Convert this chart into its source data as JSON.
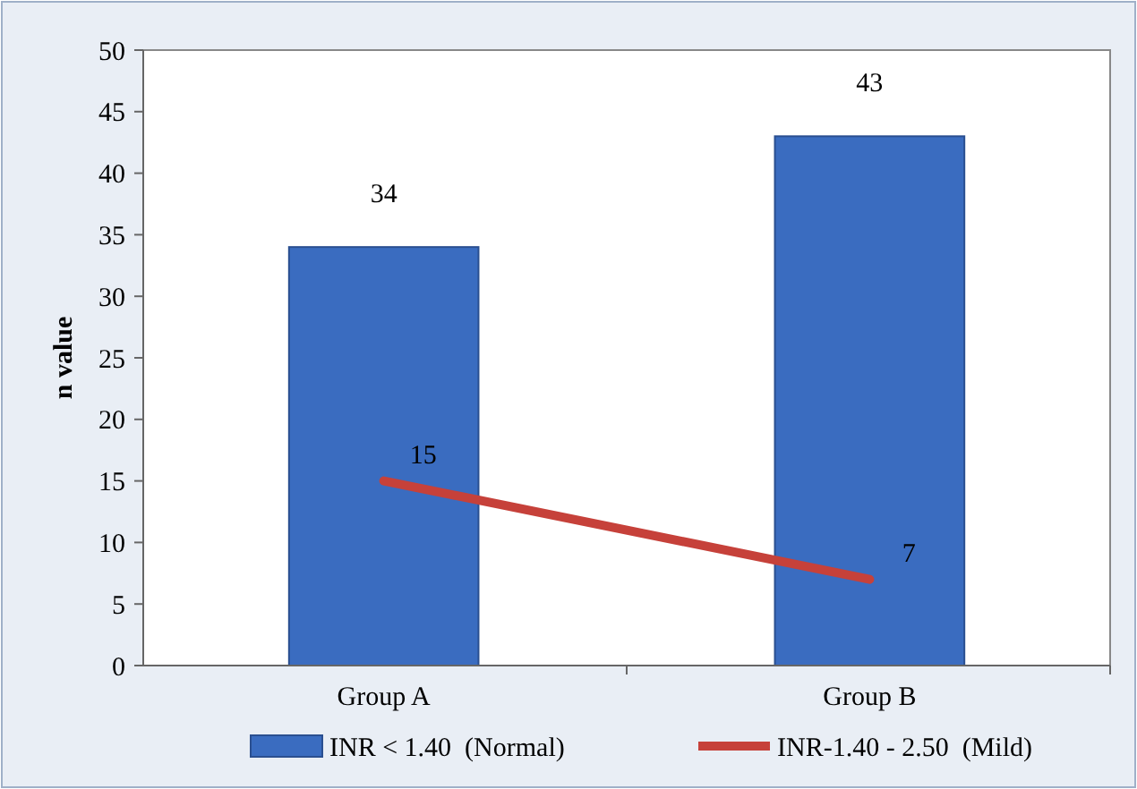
{
  "chart_data": {
    "type": "bar",
    "ylabel": "n value",
    "categories": [
      "Group A",
      "Group B"
    ],
    "series": [
      {
        "name": "INR < 1.40  (Normal)",
        "color": "#3a6cc0",
        "values": [
          34,
          43
        ]
      },
      {
        "name": "INR-1.40 - 2.50  (Mild)",
        "type": "line",
        "color": "#c6413a",
        "values": [
          15,
          7
        ]
      }
    ],
    "ylim": [
      0,
      50
    ],
    "yticks": [
      0,
      5,
      10,
      15,
      20,
      25,
      30,
      35,
      40,
      45,
      50
    ],
    "data_labels": true,
    "legend": "bottom",
    "grid": false
  }
}
